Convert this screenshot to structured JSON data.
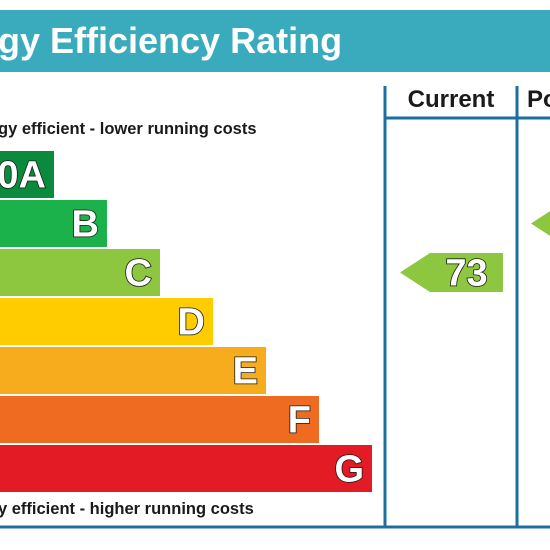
{
  "chart_data": {
    "type": "bar",
    "title": "gy Efficiency Rating",
    "top_note": "gy efficient - lower running costs",
    "bottom_note": "y efficient - higher running costs",
    "columns": [
      "Current",
      "Po"
    ],
    "bands": [
      {
        "letter": "A",
        "prefix": "0",
        "color": "#0a8a3c"
      },
      {
        "letter": "B",
        "color": "#1bb14b"
      },
      {
        "letter": "C",
        "color": "#8dc63f"
      },
      {
        "letter": "D",
        "color": "#ffcc00"
      },
      {
        "letter": "E",
        "color": "#f7ac1d"
      },
      {
        "letter": "F",
        "color": "#ef6b22"
      },
      {
        "letter": "G",
        "color": "#e21b24"
      }
    ],
    "current_rating": {
      "value": "73",
      "band": "C",
      "color": "#8dc63f"
    },
    "potential_rating": {
      "value": "",
      "band": "B",
      "color": "#8dc63f"
    },
    "colors": {
      "title_bar": "#3aabbd",
      "frame": "#1d6fa3"
    }
  }
}
